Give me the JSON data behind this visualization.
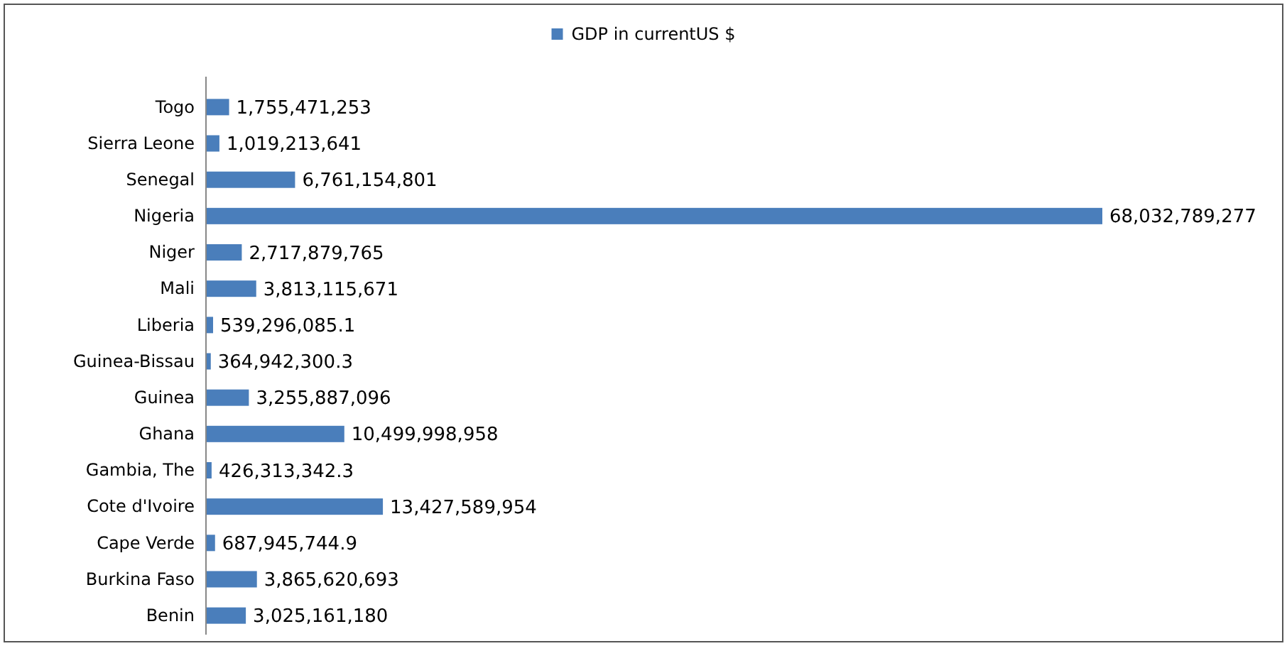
{
  "chart_data": {
    "type": "bar",
    "orientation": "horizontal",
    "categories": [
      "Togo",
      "Sierra Leone",
      "Senegal",
      "Nigeria",
      "Niger",
      "Mali",
      "Liberia",
      "Guinea-Bissau",
      "Guinea",
      "Ghana",
      "Gambia, The",
      "Cote d'Ivoire",
      "Cape Verde",
      "Burkina Faso",
      "Benin"
    ],
    "series": [
      {
        "name": "GDP in currentUS $",
        "color": "#4a7ebb",
        "values": [
          1755471253,
          1019213641,
          6761154801,
          68032789277,
          2717879765,
          3813115671,
          539296085.1,
          364942300.3,
          3255887096,
          10499998958,
          426313342.3,
          13427589954,
          687945744.9,
          3865620693,
          3025161180
        ],
        "value_labels": [
          "1,755,471,253",
          "1,019,213,641",
          "6,761,154,801",
          "68,032,789,277",
          "2,717,879,765",
          "3,813,115,671",
          "539,296,085.1",
          "364,942,300.3",
          "3,255,887,096",
          "10,499,998,958",
          "426,313,342.3",
          "13,427,589,954",
          "687,945,744.9",
          "3,865,620,693",
          "3,025,161,180"
        ]
      }
    ],
    "legend": "top"
  }
}
